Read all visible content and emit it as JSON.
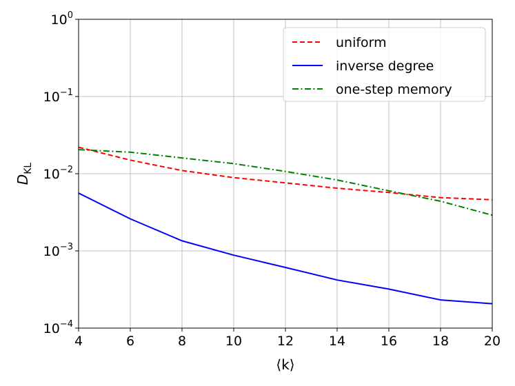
{
  "chart_data": {
    "type": "line",
    "x_scale": "linear",
    "y_scale": "log",
    "xlim": [
      4,
      20
    ],
    "ylim": [
      0.0001,
      1
    ],
    "grid": true,
    "xticks": [
      4,
      6,
      8,
      10,
      12,
      14,
      16,
      18,
      20
    ],
    "yticks": [
      {
        "value": 0.0001,
        "base": "10",
        "exp": "−4"
      },
      {
        "value": 0.001,
        "base": "10",
        "exp": "−3"
      },
      {
        "value": 0.01,
        "base": "10",
        "exp": "−2"
      },
      {
        "value": 0.1,
        "base": "10",
        "exp": "−1"
      },
      {
        "value": 1,
        "base": "10",
        "exp": "0"
      }
    ],
    "xlabel": "⟨k⟩",
    "ylabel": {
      "main": "D",
      "sub": "KL"
    },
    "legend_position": "top-right",
    "x": [
      4,
      6,
      8,
      10,
      12,
      14,
      16,
      18,
      20
    ],
    "series": [
      {
        "name": "uniform",
        "color": "#ff0000",
        "dash": "dashed",
        "values": [
          0.022,
          0.015,
          0.011,
          0.0089,
          0.0076,
          0.0065,
          0.0057,
          0.0049,
          0.0046
        ]
      },
      {
        "name": "inverse degree",
        "color": "#0000ff",
        "dash": "solid",
        "values": [
          0.0056,
          0.0026,
          0.00135,
          0.00088,
          0.00061,
          0.00042,
          0.00032,
          0.000232,
          0.000207
        ]
      },
      {
        "name": "one-step memory",
        "color": "#008000",
        "dash": "dashdot",
        "values": [
          0.0205,
          0.019,
          0.016,
          0.0135,
          0.0107,
          0.0083,
          0.006,
          0.0044,
          0.0029
        ]
      }
    ]
  }
}
